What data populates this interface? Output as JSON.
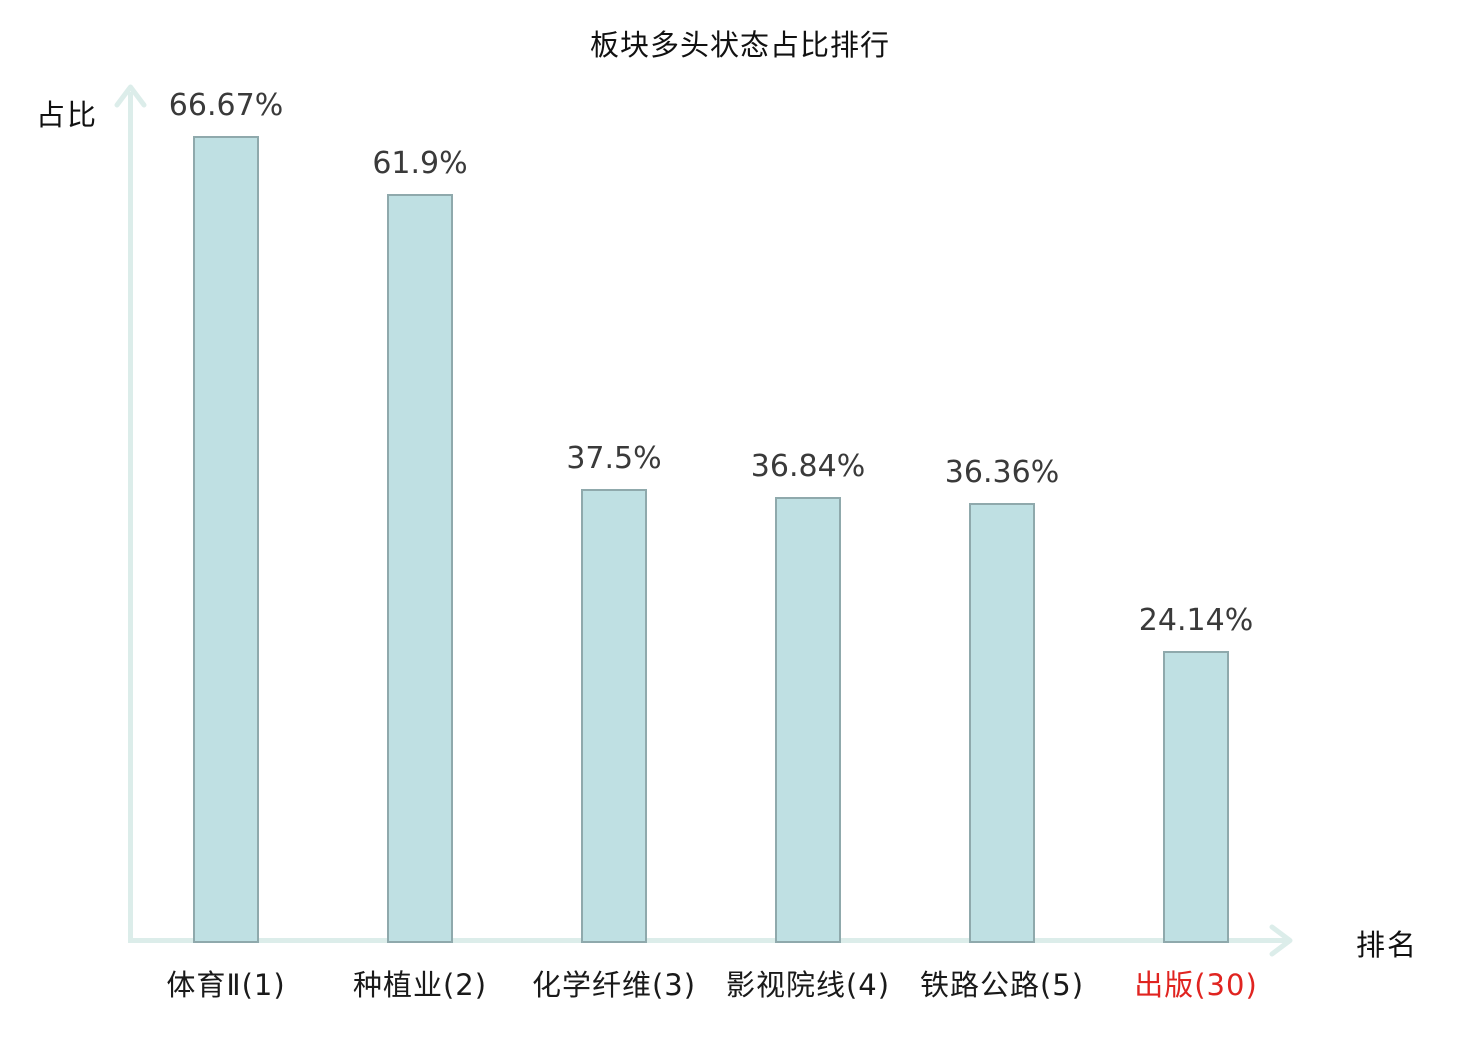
{
  "chart_data": {
    "type": "bar",
    "title": "板块多头状态占比排行",
    "ylabel": "占比",
    "xlabel": "排名",
    "categories": [
      "体育Ⅱ(1)",
      "种植业(2)",
      "化学纤维(3)",
      "影视院线(4)",
      "铁路公路(5)",
      "出版(30)"
    ],
    "values": [
      66.67,
      61.9,
      37.5,
      36.84,
      36.36,
      24.14
    ],
    "value_labels": [
      "66.67%",
      "61.9%",
      "37.5%",
      "36.84%",
      "36.36%",
      "24.14%"
    ],
    "highlighted_category_index": 5,
    "ylim": [
      0,
      70
    ],
    "grid": false,
    "legend_position": "none",
    "colors": {
      "bar_fill": "#bfe0e3",
      "bar_border": "#8fa9ac",
      "axis": "#dcedea",
      "value_text": "#3a3a3a",
      "category_text": "#1a1a1a",
      "highlight_text": "#e02420"
    }
  }
}
